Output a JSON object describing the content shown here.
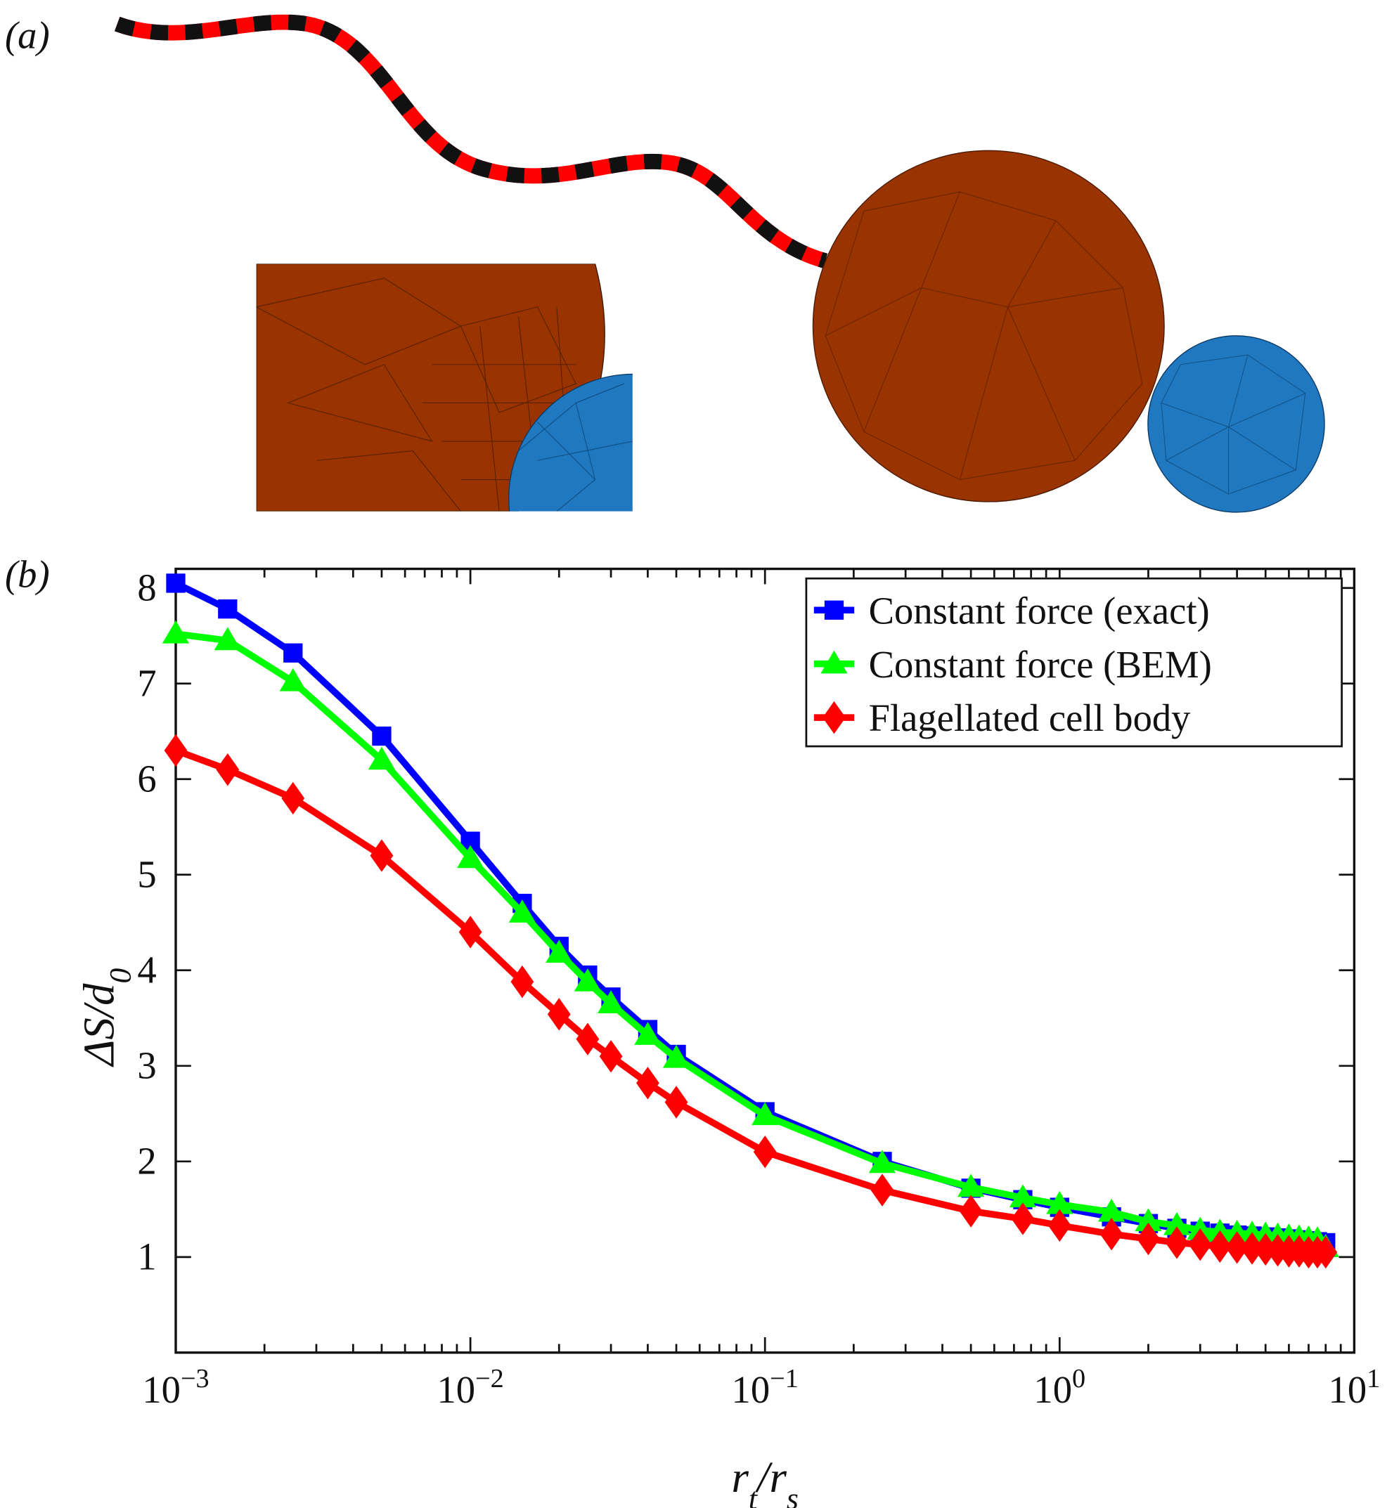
{
  "panel_a": {
    "label": "(a)",
    "colors": {
      "cell_body": "#993300",
      "small_sphere": "#1f78c0",
      "flagellum_a": "#ff0000",
      "flagellum_b": "#111111"
    }
  },
  "chart_data": {
    "panel_label": "(b)",
    "type": "line",
    "xlabel": "r_t/r_s",
    "ylabel": "ΔS/d_0",
    "xscale": "log",
    "xlim": [
      0.001,
      10
    ],
    "ylim": [
      0,
      8.2
    ],
    "grid": false,
    "legend_position": "top-right",
    "xticks": [
      {
        "v": 0.001,
        "base": "10",
        "exp": "−3"
      },
      {
        "v": 0.01,
        "base": "10",
        "exp": "−2"
      },
      {
        "v": 0.1,
        "base": "10",
        "exp": "−1"
      },
      {
        "v": 1,
        "base": "10",
        "exp": "0"
      },
      {
        "v": 10,
        "base": "10",
        "exp": "1"
      }
    ],
    "yticks": [
      "1",
      "2",
      "3",
      "4",
      "5",
      "6",
      "7",
      "8"
    ],
    "x": [
      0.001,
      0.0015,
      0.0025,
      0.005,
      0.01,
      0.015,
      0.02,
      0.025,
      0.03,
      0.04,
      0.05,
      0.1,
      0.25,
      0.5,
      0.75,
      1,
      1.5,
      2,
      2.5,
      3,
      3.5,
      4,
      4.5,
      5,
      5.5,
      6,
      6.5,
      7,
      7.5,
      8
    ],
    "series": [
      {
        "name": "Constant force (exact)",
        "color": "#0000ff",
        "marker": "square",
        "values": [
          8.05,
          7.78,
          7.32,
          6.45,
          5.35,
          4.7,
          4.25,
          3.95,
          3.72,
          3.38,
          3.12,
          2.52,
          2.0,
          1.72,
          1.6,
          1.52,
          1.42,
          1.35,
          1.3,
          1.27,
          1.25,
          1.23,
          1.22,
          1.21,
          1.2,
          1.19,
          1.18,
          1.17,
          1.16,
          1.15
        ]
      },
      {
        "name": "Constant force (BEM)",
        "color": "#00ff00",
        "marker": "triangle",
        "values": [
          7.52,
          7.45,
          7.02,
          6.2,
          5.17,
          4.6,
          4.18,
          3.88,
          3.65,
          3.32,
          3.08,
          2.48,
          1.98,
          1.73,
          1.62,
          1.55,
          1.47,
          1.37,
          1.33,
          1.28,
          1.26,
          1.25,
          1.24,
          1.23,
          1.22,
          1.21,
          1.2,
          1.19,
          1.18,
          1.1
        ]
      },
      {
        "name": "Flagellated cell body",
        "color": "#ff0000",
        "marker": "diamond",
        "values": [
          6.3,
          6.1,
          5.8,
          5.2,
          4.4,
          3.88,
          3.54,
          3.28,
          3.1,
          2.82,
          2.62,
          2.1,
          1.7,
          1.48,
          1.4,
          1.33,
          1.24,
          1.19,
          1.15,
          1.13,
          1.11,
          1.1,
          1.09,
          1.08,
          1.07,
          1.06,
          1.06,
          1.05,
          1.05,
          1.05
        ]
      }
    ]
  }
}
